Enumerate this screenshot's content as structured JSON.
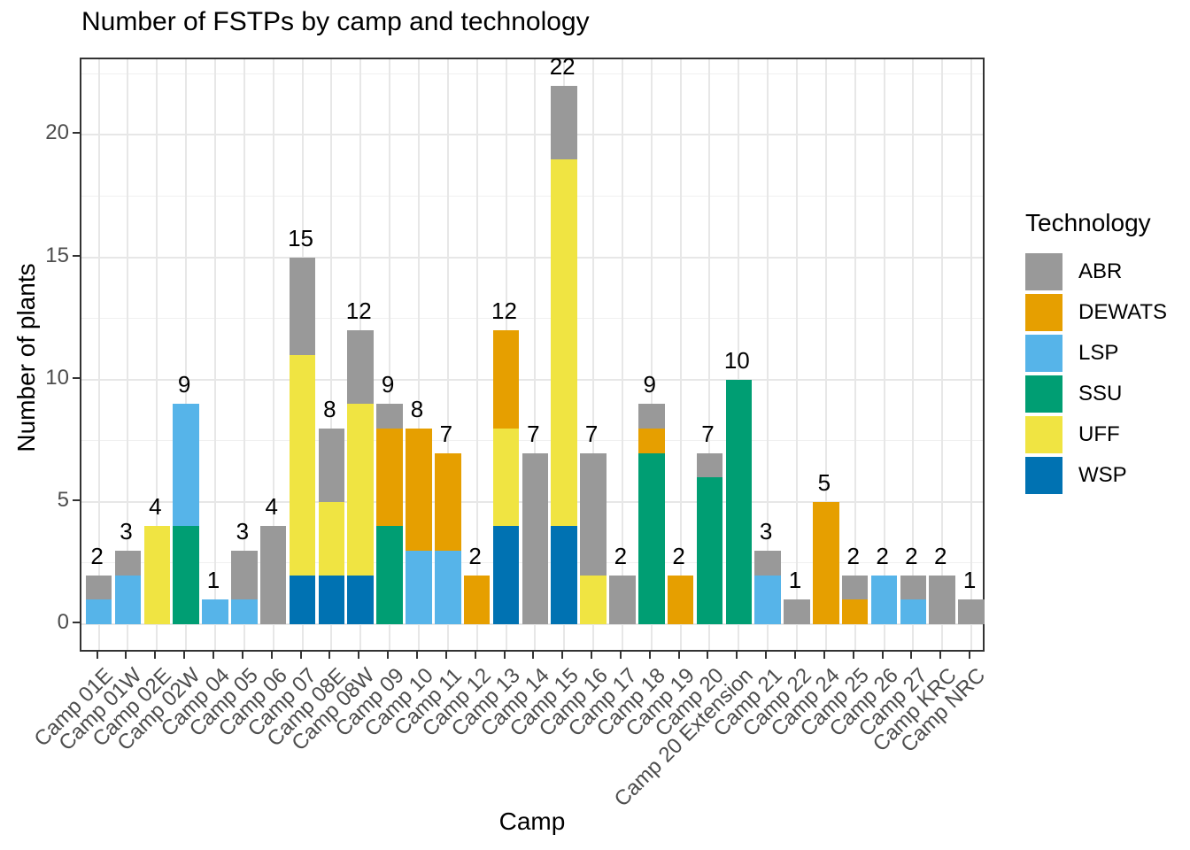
{
  "title": "Number of FSTPs by camp and technology",
  "axes": {
    "x_label": "Camp",
    "y_label": "Number of plants",
    "y_ticks": [
      0,
      5,
      10,
      15,
      20
    ]
  },
  "legend": {
    "title": "Technology",
    "items": [
      {
        "label": "ABR",
        "color": "#999999"
      },
      {
        "label": "DEWATS",
        "color": "#E69F00"
      },
      {
        "label": "LSP",
        "color": "#56B4E9"
      },
      {
        "label": "SSU",
        "color": "#009E73"
      },
      {
        "label": "UFF",
        "color": "#F0E442"
      },
      {
        "label": "WSP",
        "color": "#0072B2"
      }
    ]
  },
  "chart_data": {
    "type": "bar",
    "stacked": true,
    "title": "Number of FSTPs by camp and technology",
    "xlabel": "Camp",
    "ylabel": "Number of plants",
    "ylim": [
      0,
      23.1
    ],
    "y_major_ticks": [
      0,
      5,
      10,
      15,
      20
    ],
    "y_minor_gridlines": [
      2.5,
      7.5,
      12.5,
      17.5,
      22.5
    ],
    "grid": true,
    "legend_title": "Technology",
    "legend_position": "right",
    "stack_order_bottom_to_top": [
      "WSP",
      "UFF",
      "SSU",
      "LSP",
      "DEWATS",
      "ABR"
    ],
    "categories": [
      "Camp 01E",
      "Camp 01W",
      "Camp 02E",
      "Camp 02W",
      "Camp 04",
      "Camp 05",
      "Camp 06",
      "Camp 07",
      "Camp 08E",
      "Camp 08W",
      "Camp 09",
      "Camp 10",
      "Camp 11",
      "Camp 12",
      "Camp 13",
      "Camp 14",
      "Camp 15",
      "Camp 16",
      "Camp 17",
      "Camp 18",
      "Camp 19",
      "Camp 20",
      "Camp 20 Extension",
      "Camp 21",
      "Camp 22",
      "Camp 24",
      "Camp 25",
      "Camp 26",
      "Camp 27",
      "Camp KRC",
      "Camp NRC"
    ],
    "series": [
      {
        "name": "ABR",
        "color": "#999999",
        "values": [
          1,
          1,
          0,
          0,
          0,
          2,
          4,
          4,
          3,
          3,
          1,
          0,
          0,
          0,
          0,
          7,
          3,
          5,
          2,
          1,
          0,
          1,
          0,
          1,
          1,
          0,
          1,
          0,
          1,
          2,
          1
        ]
      },
      {
        "name": "DEWATS",
        "color": "#E69F00",
        "values": [
          0,
          0,
          0,
          0,
          0,
          0,
          0,
          0,
          0,
          0,
          4,
          5,
          4,
          2,
          4,
          0,
          0,
          0,
          0,
          1,
          2,
          0,
          0,
          0,
          0,
          5,
          1,
          0,
          0,
          0,
          0
        ]
      },
      {
        "name": "LSP",
        "color": "#56B4E9",
        "values": [
          1,
          2,
          0,
          5,
          1,
          1,
          0,
          0,
          0,
          0,
          0,
          3,
          3,
          0,
          0,
          0,
          0,
          0,
          0,
          0,
          0,
          0,
          0,
          2,
          0,
          0,
          0,
          2,
          1,
          0,
          0
        ]
      },
      {
        "name": "SSU",
        "color": "#009E73",
        "values": [
          0,
          0,
          0,
          4,
          0,
          0,
          0,
          0,
          0,
          0,
          4,
          0,
          0,
          0,
          0,
          0,
          0,
          0,
          0,
          7,
          0,
          6,
          10,
          0,
          0,
          0,
          0,
          0,
          0,
          0,
          0
        ]
      },
      {
        "name": "UFF",
        "color": "#F0E442",
        "values": [
          0,
          0,
          4,
          0,
          0,
          0,
          0,
          9,
          3,
          7,
          0,
          0,
          0,
          0,
          4,
          0,
          15,
          2,
          0,
          0,
          0,
          0,
          0,
          0,
          0,
          0,
          0,
          0,
          0,
          0,
          0
        ]
      },
      {
        "name": "WSP",
        "color": "#0072B2",
        "values": [
          0,
          0,
          0,
          0,
          0,
          0,
          0,
          2,
          2,
          2,
          0,
          0,
          0,
          0,
          4,
          0,
          4,
          0,
          0,
          0,
          0,
          0,
          0,
          0,
          0,
          0,
          0,
          0,
          0,
          0,
          0
        ]
      }
    ],
    "bar_totals": [
      2,
      3,
      4,
      9,
      1,
      3,
      4,
      15,
      8,
      12,
      9,
      8,
      7,
      2,
      12,
      7,
      22,
      7,
      2,
      9,
      2,
      7,
      10,
      3,
      1,
      5,
      2,
      2,
      2,
      2,
      1
    ]
  }
}
